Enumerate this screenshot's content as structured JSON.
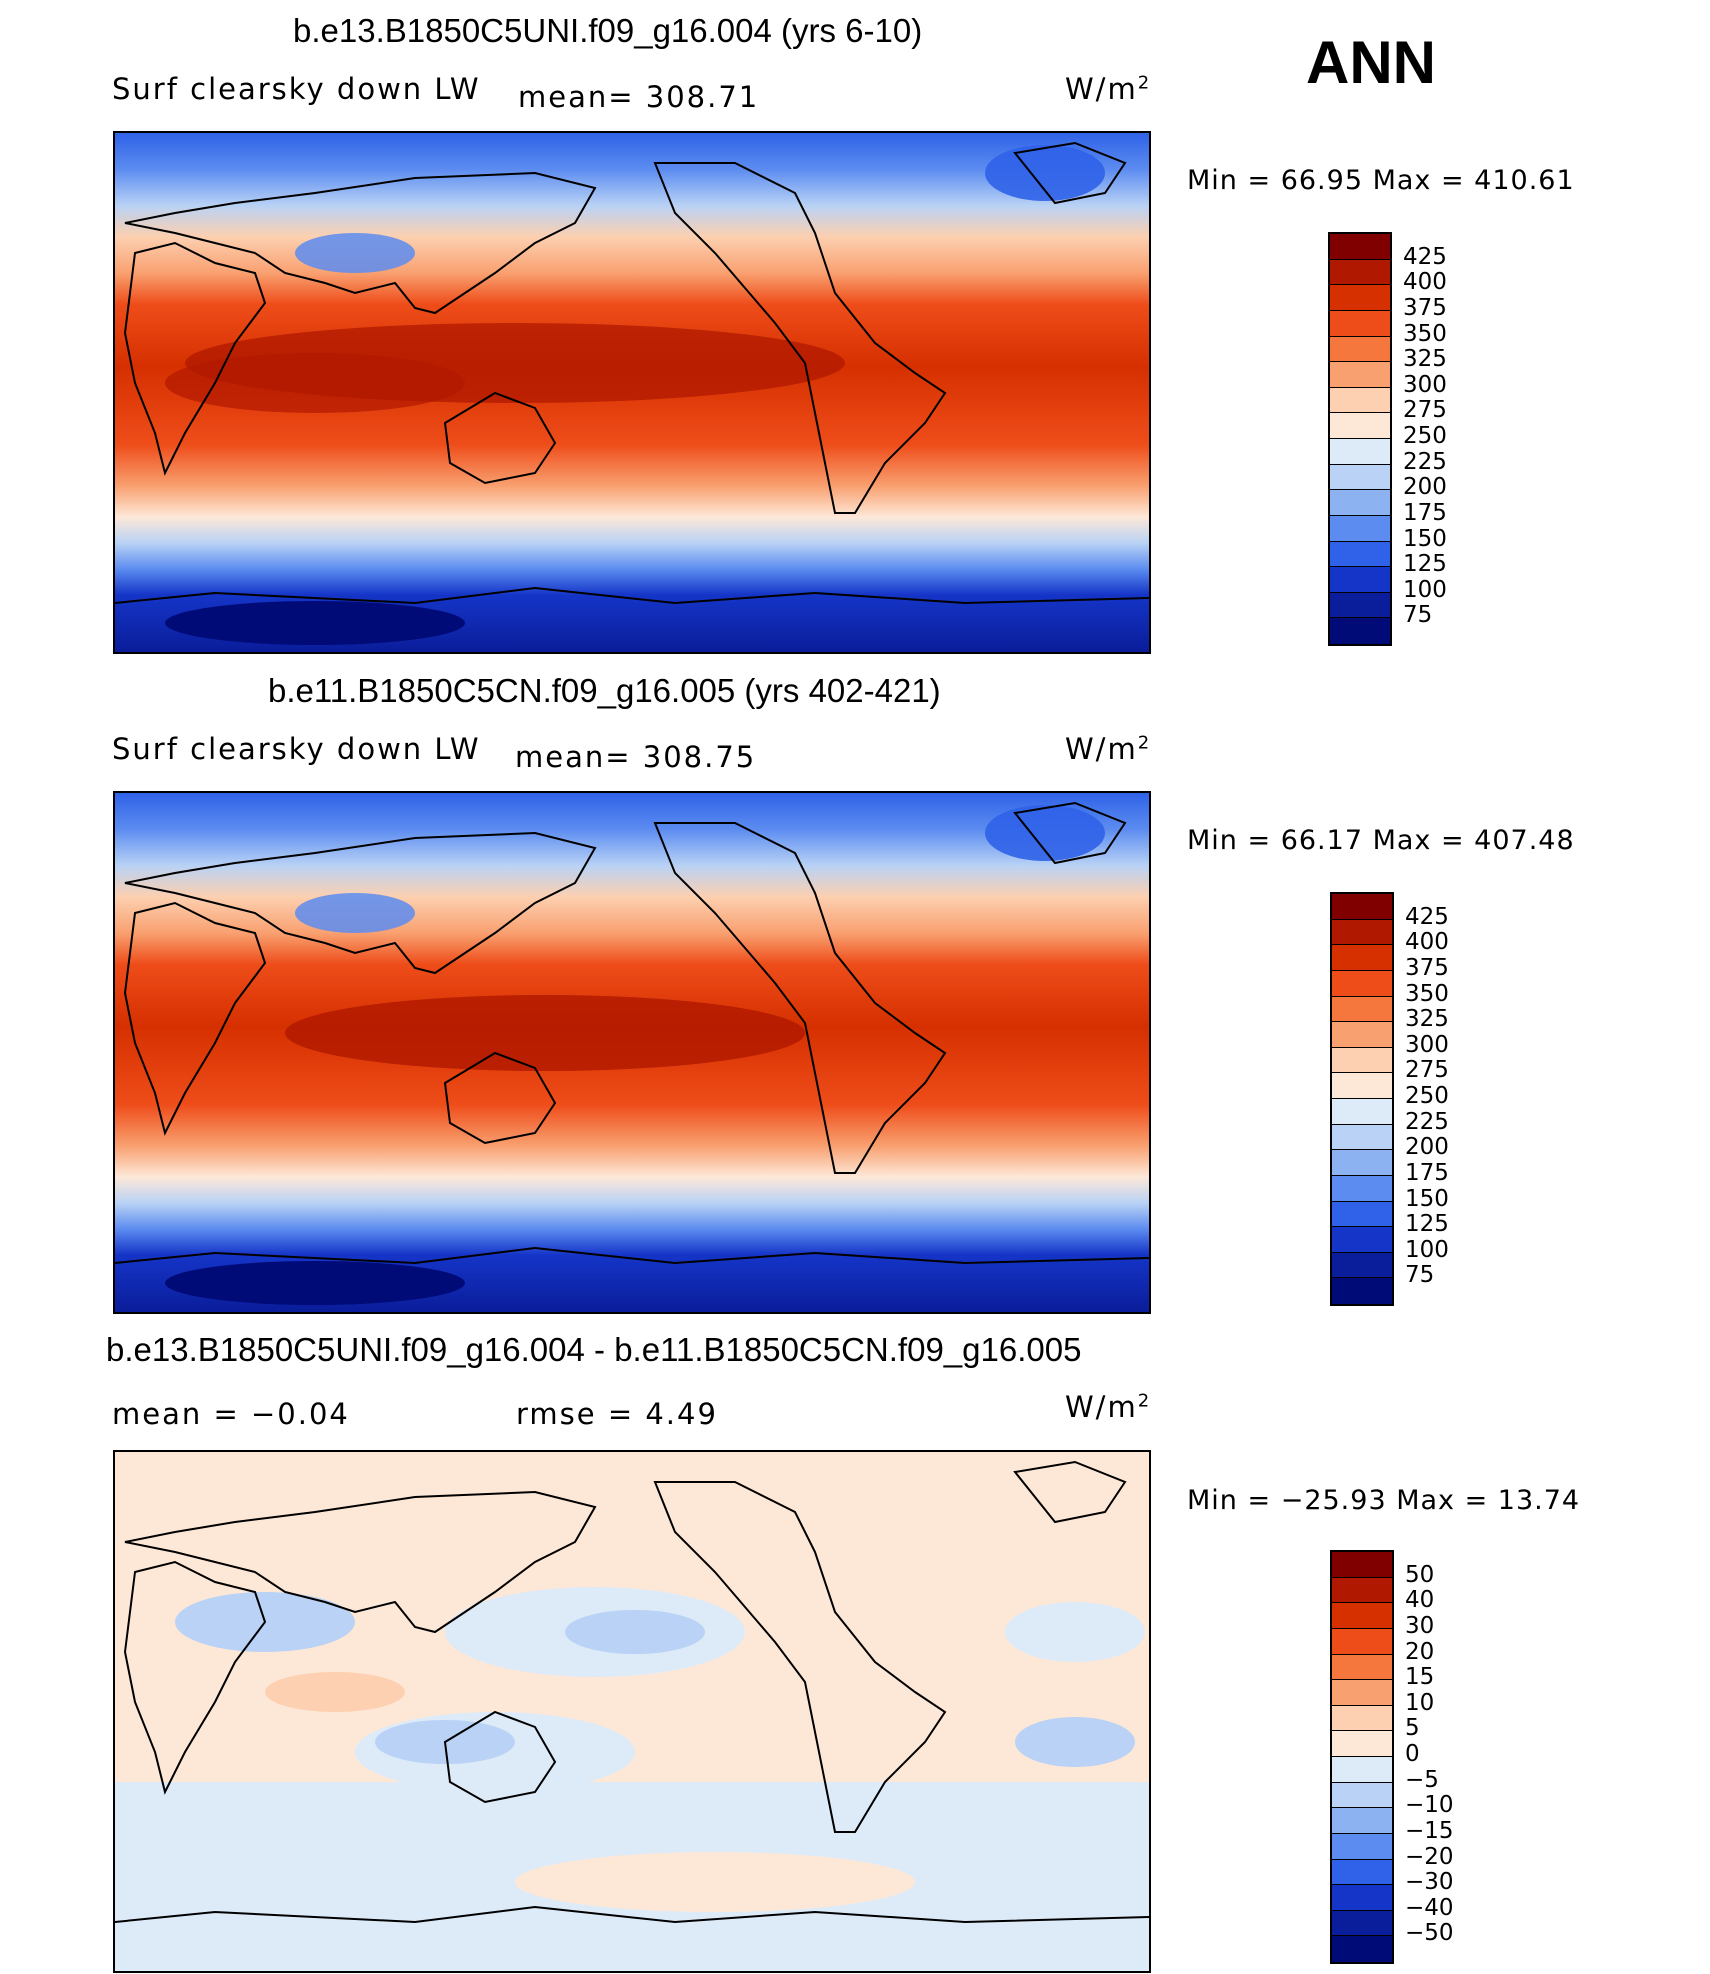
{
  "season": "ANN",
  "units": "W/m",
  "units_sup": "2",
  "panels": [
    {
      "title": "b.e13.B1850C5UNI.f09_g16.004 (yrs 6-10)",
      "subtitle": "Surf clearsky down LW",
      "stat": "mean= 308.71",
      "stat2": "",
      "minmax": "Min =   66.95 Max = 410.61",
      "levels": [
        "425",
        "400",
        "375",
        "350",
        "325",
        "300",
        "275",
        "250",
        "225",
        "200",
        "175",
        "150",
        "125",
        "100",
        "75"
      ]
    },
    {
      "title": "b.e11.B1850C5CN.f09_g16.005 (yrs 402-421)",
      "subtitle": "Surf clearsky down LW",
      "stat": "mean= 308.75",
      "stat2": "",
      "minmax": "Min =   66.17 Max = 407.48",
      "levels": [
        "425",
        "400",
        "375",
        "350",
        "325",
        "300",
        "275",
        "250",
        "225",
        "200",
        "175",
        "150",
        "125",
        "100",
        "75"
      ]
    },
    {
      "title": "b.e13.B1850C5UNI.f09_g16.004 - b.e11.B1850C5CN.f09_g16.005",
      "subtitle": "mean =   −0.04",
      "stat": "rmse =    4.49",
      "stat2": "",
      "minmax": "Min = −25.93 Max =   13.74",
      "levels": [
        "50",
        "40",
        "30",
        "20",
        "15",
        "10",
        "5",
        "0",
        "−5",
        "−10",
        "−15",
        "−20",
        "−30",
        "−40",
        "−50"
      ]
    }
  ],
  "colors": {
    "abs": [
      "#800000",
      "#b01800",
      "#d63000",
      "#ee4d1a",
      "#f5773e",
      "#f9a070",
      "#fcd0b0",
      "#fde8d8",
      "#ddeaf8",
      "#b9d2f5",
      "#8cb2f2",
      "#5c8cf0",
      "#2f62e8",
      "#1535c8",
      "#0a1d9a",
      "#000b78"
    ],
    "diff": [
      "#800000",
      "#b01800",
      "#d63000",
      "#ee4d1a",
      "#f5773e",
      "#f9a070",
      "#fcd0b0",
      "#fde8d8",
      "#ddeaf8",
      "#b9d2f5",
      "#8cb2f2",
      "#5c8cf0",
      "#2f62e8",
      "#1535c8",
      "#0a1d9a",
      "#000b78"
    ]
  }
}
